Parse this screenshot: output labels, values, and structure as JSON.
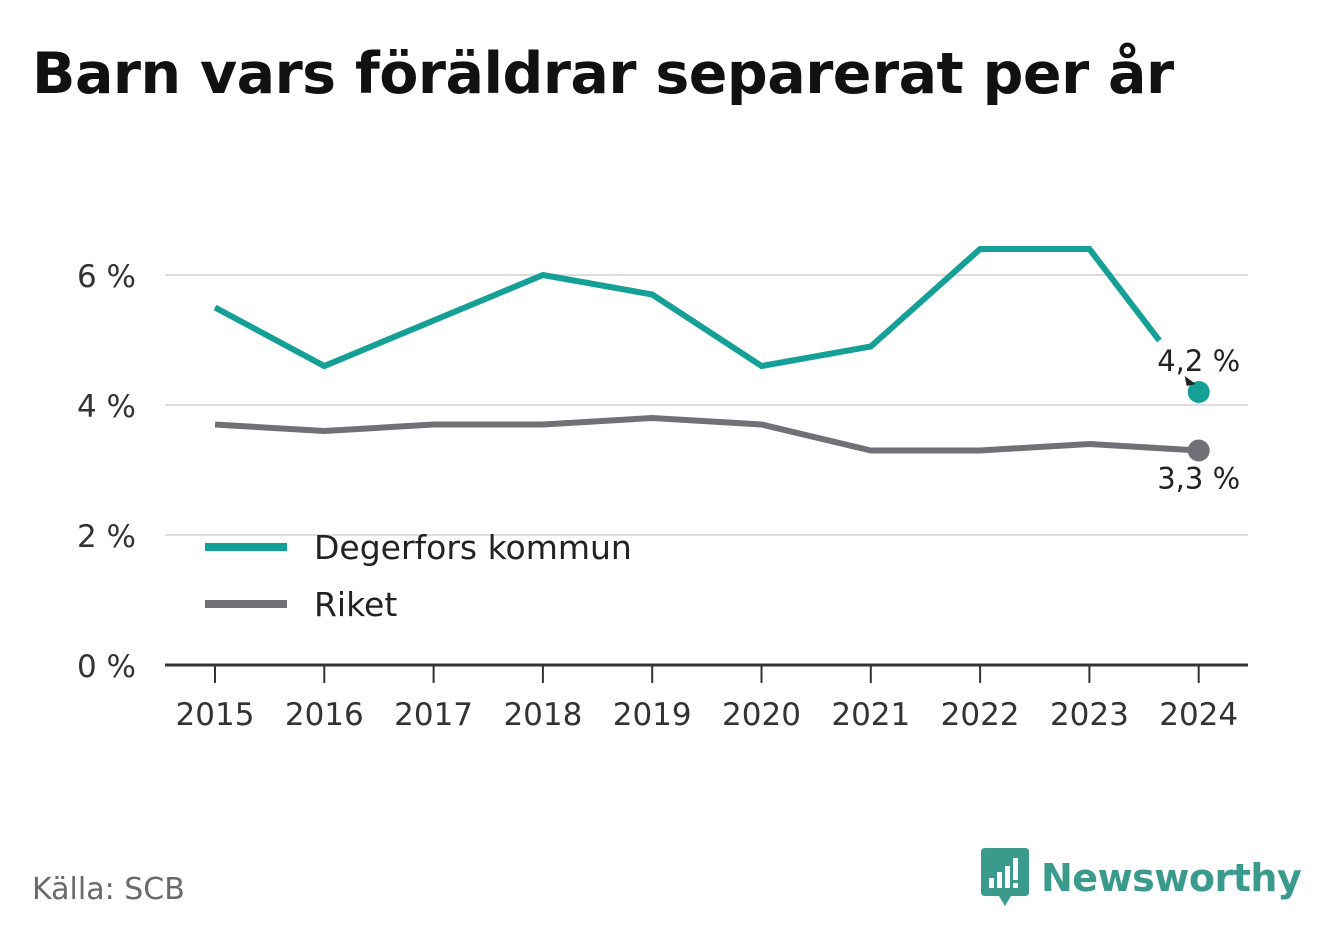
{
  "title": "Barn vars föräldrar separerat per år",
  "source": "Källa: SCB",
  "brand": {
    "name": "Newsworthy",
    "icon": "newsworthy-logo-icon",
    "color": "#3a9a8c"
  },
  "colors": {
    "degerfors": "#14a096",
    "riket": "#717077",
    "grid": "#dddddd",
    "axis": "#333333"
  },
  "chart_data": {
    "type": "line",
    "title": "Barn vars föräldrar separerat per år",
    "xlabel": "",
    "ylabel": "",
    "x": [
      "2015",
      "2016",
      "2017",
      "2018",
      "2019",
      "2020",
      "2021",
      "2022",
      "2023",
      "2024"
    ],
    "ylim": [
      0,
      7
    ],
    "yticks": [
      0,
      2,
      4,
      6
    ],
    "ytick_labels": [
      "0 %",
      "2 %",
      "4 %",
      "6 %"
    ],
    "grid": true,
    "legend": "bottom-left",
    "series": [
      {
        "name": "Degerfors kommun",
        "color": "#14a096",
        "values": [
          5.5,
          4.6,
          5.3,
          6.0,
          5.7,
          4.6,
          4.9,
          6.4,
          6.4,
          4.2
        ],
        "end_label": "4,2 %"
      },
      {
        "name": "Riket",
        "color": "#717077",
        "values": [
          3.7,
          3.6,
          3.7,
          3.7,
          3.8,
          3.7,
          3.3,
          3.3,
          3.4,
          3.3
        ],
        "end_label": "3,3 %"
      }
    ]
  }
}
